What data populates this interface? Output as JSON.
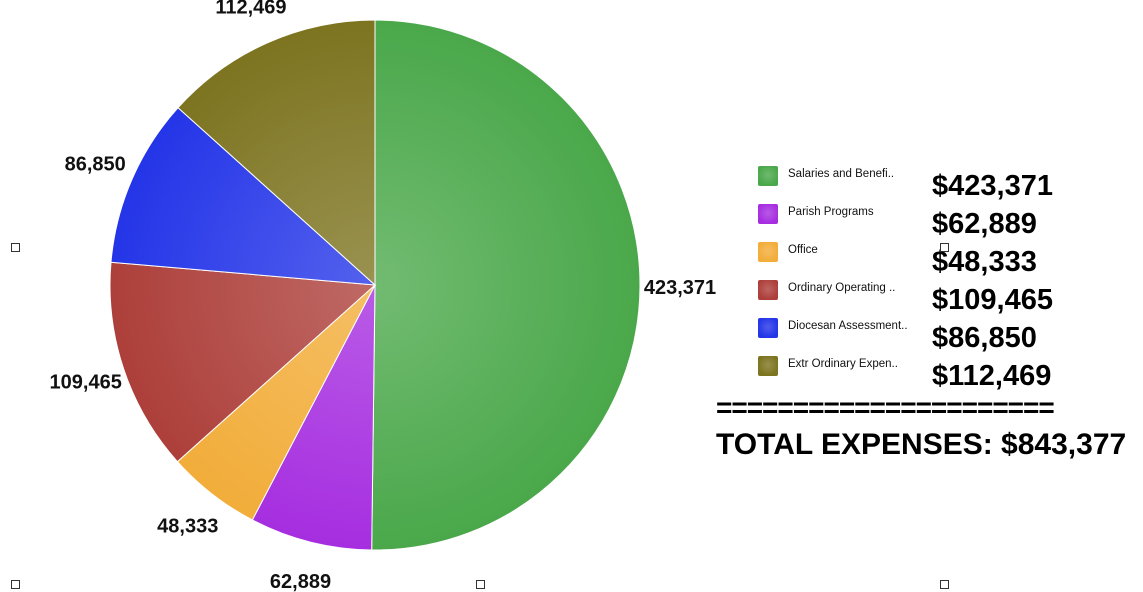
{
  "chart_data": {
    "type": "pie",
    "categories": [
      "Salaries and Benefi..",
      "Parish Programs",
      "Office",
      "Ordinary Operating ..",
      "Diocesan Assessment..",
      "Extr Ordinary Expen.."
    ],
    "values": [
      423371,
      62889,
      48333,
      109465,
      86850,
      112469
    ],
    "slice_labels": [
      "423,371",
      "62,889",
      "48,333",
      "109,465",
      "86,850",
      "112,469"
    ],
    "colors": [
      "#4aa84a",
      "#a62ee0",
      "#f2ad3a",
      "#ad3f3a",
      "#2435e8",
      "#7d7420"
    ],
    "start": "12 o'clock",
    "direction": "clockwise",
    "legend_position": "right"
  },
  "legend": {
    "items": [
      {
        "label": "Salaries and Benefi..",
        "amount": "$423,371",
        "color": "#4aa84a"
      },
      {
        "label": "Parish Programs",
        "amount": "$62,889",
        "color": "#a62ee0"
      },
      {
        "label": "Office",
        "amount": "$48,333",
        "color": "#f2ad3a"
      },
      {
        "label": "Ordinary Operating ..",
        "amount": "$109,465",
        "color": "#ad3f3a"
      },
      {
        "label": "Diocesan Assessment..",
        "amount": "$86,850",
        "color": "#2435e8"
      },
      {
        "label": "Extr Ordinary Expen..",
        "amount": "$112,469",
        "color": "#7d7420"
      }
    ]
  },
  "summary": {
    "separator": "======================",
    "total": "TOTAL EXPENSES: $843,377"
  }
}
